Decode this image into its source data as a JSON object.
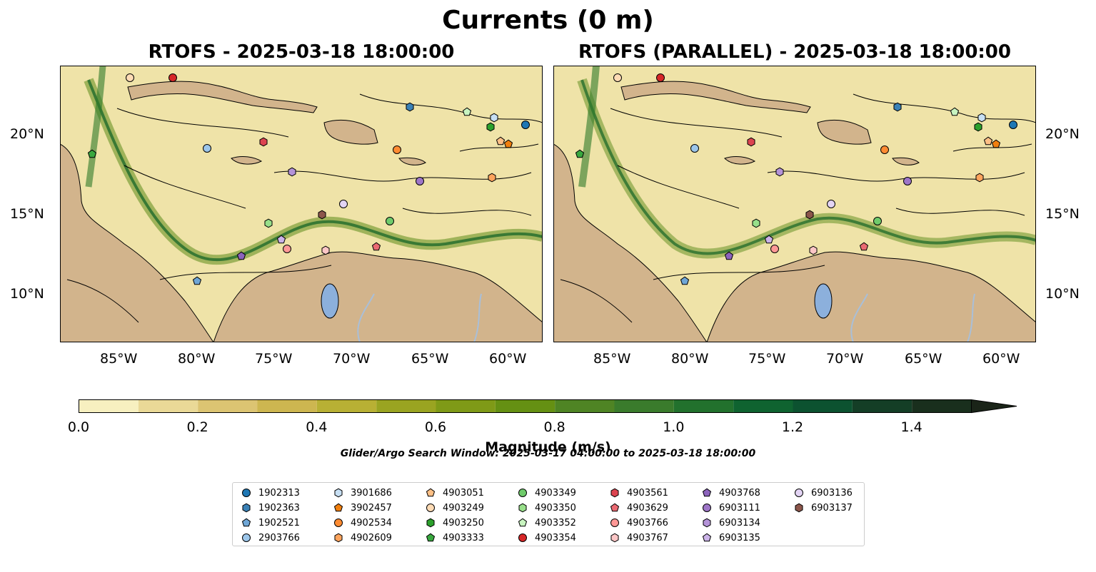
{
  "figure": {
    "title": "Currents (0 m)",
    "panels": [
      {
        "title": "RTOFS - 2025-03-18 18:00:00"
      },
      {
        "title": "RTOFS (PARALLEL) - 2025-03-18 18:00:00"
      }
    ],
    "x_ticks": [
      "85°W",
      "80°W",
      "75°W",
      "70°W",
      "65°W",
      "60°W"
    ],
    "y_ticks": [
      "20°N",
      "15°N",
      "10°N"
    ],
    "colorbar": {
      "label": "Magnitude (m/s)",
      "ticks": [
        "0.0",
        "0.2",
        "0.4",
        "0.6",
        "0.8",
        "1.0",
        "1.2",
        "1.4"
      ],
      "range": [
        0,
        1.5
      ],
      "extend": "max",
      "colors": [
        "#f7f0c0",
        "#ead997",
        "#dcc472",
        "#cdb650",
        "#b8b034",
        "#9aa421",
        "#7f9a17",
        "#659013",
        "#4f8424",
        "#3a7b2c",
        "#22712d",
        "#0f6330",
        "#0c5230",
        "#143e26",
        "#192f1d",
        "#1a2418"
      ]
    },
    "subtitle": "Glider/Argo Search Window: 2025-03-17 04:00:00 to 2025-03-18 18:00:00",
    "colors": {
      "land": "#d2b48c",
      "lakes": "#8cb0dc",
      "rivers": "#a9bfd8"
    }
  },
  "legend": [
    {
      "id": "1902313",
      "color": "#1f77b4",
      "marker": "circle"
    },
    {
      "id": "1902363",
      "color": "#3a81b6",
      "marker": "hexagon"
    },
    {
      "id": "1902521",
      "color": "#6fa6d6",
      "marker": "pentagon"
    },
    {
      "id": "2903766",
      "color": "#9cc6ea",
      "marker": "circle"
    },
    {
      "id": "3901686",
      "color": "#c7dff3",
      "marker": "hexagon"
    },
    {
      "id": "3902457",
      "color": "#f07f0e",
      "marker": "pentagon"
    },
    {
      "id": "4902534",
      "color": "#fe8b32",
      "marker": "circle"
    },
    {
      "id": "4902609",
      "color": "#fea45d",
      "marker": "hexagon"
    },
    {
      "id": "4903051",
      "color": "#fec086",
      "marker": "pentagon"
    },
    {
      "id": "4903249",
      "color": "#fedbb5",
      "marker": "circle"
    },
    {
      "id": "4903250",
      "color": "#2ca02c",
      "marker": "hexagon"
    },
    {
      "id": "4903333",
      "color": "#39a83f",
      "marker": "pentagon"
    },
    {
      "id": "4903349",
      "color": "#6fcb6b",
      "marker": "circle"
    },
    {
      "id": "4903350",
      "color": "#98df8a",
      "marker": "hexagon"
    },
    {
      "id": "4903352",
      "color": "#c8f4c0",
      "marker": "pentagon"
    },
    {
      "id": "4903354",
      "color": "#d62728",
      "marker": "circle"
    },
    {
      "id": "4903561",
      "color": "#dc4450",
      "marker": "hexagon"
    },
    {
      "id": "4903629",
      "color": "#ea6a72",
      "marker": "pentagon"
    },
    {
      "id": "4903766",
      "color": "#ff9896",
      "marker": "circle"
    },
    {
      "id": "4903767",
      "color": "#fcc6c6",
      "marker": "hexagon"
    },
    {
      "id": "4903768",
      "color": "#8c63bc",
      "marker": "pentagon"
    },
    {
      "id": "6903111",
      "color": "#9e76c8",
      "marker": "circle"
    },
    {
      "id": "6903134",
      "color": "#b493d8",
      "marker": "hexagon"
    },
    {
      "id": "6903135",
      "color": "#cbb3e8",
      "marker": "pentagon"
    },
    {
      "id": "6903136",
      "color": "#e3d4f4",
      "marker": "circle"
    },
    {
      "id": "6903137",
      "color": "#8c564b",
      "marker": "hexagon"
    }
  ]
}
